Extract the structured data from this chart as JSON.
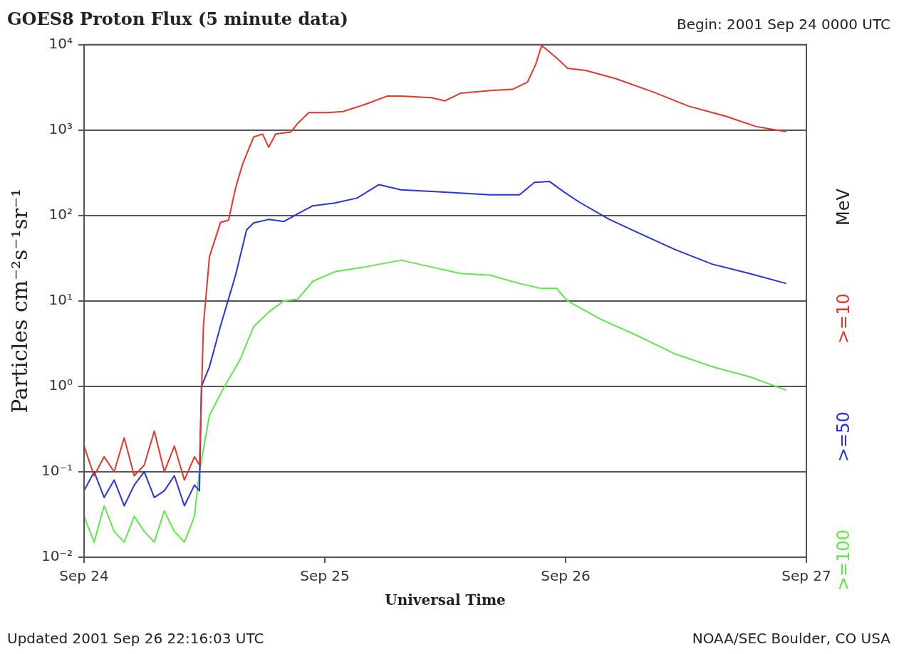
{
  "chart_data": {
    "type": "line",
    "title": "GOES8 Proton Flux (5 minute data)",
    "xlabel": "Universal Time",
    "ylabel": "Particles cm⁻²s⁻¹sr⁻¹",
    "legend_title": "MeV",
    "legend": "right",
    "grid": "y",
    "log": "y",
    "xlim": [
      "2001-09-24",
      "2001-09-27"
    ],
    "xticks": [
      {
        "value": "2001-09-24",
        "label": "Sep 24"
      },
      {
        "value": "2001-09-25",
        "label": "Sep 25"
      },
      {
        "value": "2001-09-26",
        "label": "Sep 26"
      },
      {
        "value": "2001-09-27",
        "label": "Sep 27"
      }
    ],
    "ylim": [
      0.01,
      10000
    ],
    "yticks": [
      {
        "value": 0.01,
        "label": "10⁻²"
      },
      {
        "value": 0.1,
        "label": "10⁻¹"
      },
      {
        "value": 1,
        "label": "10⁰"
      },
      {
        "value": 10,
        "label": "10¹"
      },
      {
        "value": 100,
        "label": "10²"
      },
      {
        "value": 1000,
        "label": "10³"
      },
      {
        "value": 10000,
        "label": "10⁴"
      }
    ],
    "annotations": [
      "Begin: 2001 Sep 24 0000 UTC",
      "Updated 2001 Sep 26 22:16:03 UTC",
      "NOAA/SEC Boulder, CO USA"
    ],
    "series": [
      {
        "name": ">=10",
        "color": "#e8352a",
        "x": [
          "2001-09-24T00:00",
          "2001-09-24T01:00",
          "2001-09-24T02:00",
          "2001-09-24T03:00",
          "2001-09-24T04:00",
          "2001-09-24T05:00",
          "2001-09-24T06:00",
          "2001-09-24T07:00",
          "2001-09-24T08:00",
          "2001-09-24T09:00",
          "2001-09-24T10:00",
          "2001-09-24T11:00",
          "2001-09-24T11:30",
          "2001-09-24T11:54",
          "2001-09-24T12:30",
          "2001-09-24T13:36",
          "2001-09-24T14:24",
          "2001-09-24T15:06",
          "2001-09-24T15:48",
          "2001-09-24T16:54",
          "2001-09-24T17:48",
          "2001-09-24T18:24",
          "2001-09-24T19:06",
          "2001-09-24T20:36",
          "2001-09-24T21:18",
          "2001-09-24T22:24",
          "2001-09-25T00:18",
          "2001-09-25T01:48",
          "2001-09-25T04:00",
          "2001-09-25T06:12",
          "2001-09-25T07:36",
          "2001-09-25T10:36",
          "2001-09-25T12:00",
          "2001-09-25T13:30",
          "2001-09-25T16:30",
          "2001-09-25T18:42",
          "2001-09-25T20:12",
          "2001-09-25T21:00",
          "2001-09-25T21:36",
          "2001-09-25T22:00",
          "2001-09-25T23:06",
          "2001-09-26T00:12",
          "2001-09-26T02:00",
          "2001-09-26T05:00",
          "2001-09-26T08:42",
          "2001-09-26T12:18",
          "2001-09-26T16:00",
          "2001-09-26T19:00",
          "2001-09-26T22:00"
        ],
        "values": [
          0.2,
          0.09,
          0.15,
          0.1,
          0.25,
          0.09,
          0.12,
          0.3,
          0.1,
          0.2,
          0.08,
          0.15,
          0.12,
          5.2,
          33,
          83,
          88,
          210,
          400,
          830,
          900,
          630,
          900,
          950,
          1200,
          1600,
          1600,
          1650,
          2000,
          2500,
          2500,
          2400,
          2200,
          2700,
          2900,
          3000,
          3650,
          5800,
          9700,
          9000,
          7000,
          5300,
          5000,
          4000,
          2800,
          1900,
          1450,
          1100,
          960
        ]
      },
      {
        "name": ">=50",
        "color": "#2633e0",
        "x": [
          "2001-09-24T00:00",
          "2001-09-24T01:00",
          "2001-09-24T02:00",
          "2001-09-24T03:00",
          "2001-09-24T04:00",
          "2001-09-24T05:00",
          "2001-09-24T06:00",
          "2001-09-24T07:00",
          "2001-09-24T08:00",
          "2001-09-24T09:00",
          "2001-09-24T10:00",
          "2001-09-24T11:00",
          "2001-09-24T11:30",
          "2001-09-24T11:42",
          "2001-09-24T12:30",
          "2001-09-24T13:36",
          "2001-09-24T14:24",
          "2001-09-24T15:06",
          "2001-09-24T16:12",
          "2001-09-24T16:54",
          "2001-09-24T18:24",
          "2001-09-24T19:54",
          "2001-09-24T21:18",
          "2001-09-24T22:48",
          "2001-09-25T01:00",
          "2001-09-25T03:12",
          "2001-09-25T05:24",
          "2001-09-25T07:36",
          "2001-09-25T11:18",
          "2001-09-25T16:30",
          "2001-09-25T19:24",
          "2001-09-25T20:54",
          "2001-09-25T22:24",
          "2001-09-25T23:48",
          "2001-09-26T01:18",
          "2001-09-26T04:18",
          "2001-09-26T07:12",
          "2001-09-26T10:54",
          "2001-09-26T14:36",
          "2001-09-26T18:18",
          "2001-09-26T22:00"
        ],
        "values": [
          0.06,
          0.1,
          0.05,
          0.08,
          0.04,
          0.07,
          0.1,
          0.05,
          0.06,
          0.09,
          0.04,
          0.07,
          0.06,
          1,
          1.7,
          5.1,
          10.6,
          20,
          68,
          82,
          90,
          85,
          105,
          130,
          140,
          160,
          230,
          200,
          190,
          175,
          175,
          245,
          250,
          190,
          145,
          91,
          63,
          40,
          27,
          21,
          16
        ]
      },
      {
        "name": ">=100",
        "color": "#5fe84a",
        "x": [
          "2001-09-24T00:00",
          "2001-09-24T01:00",
          "2001-09-24T02:00",
          "2001-09-24T03:00",
          "2001-09-24T04:00",
          "2001-09-24T05:00",
          "2001-09-24T06:00",
          "2001-09-24T07:00",
          "2001-09-24T08:00",
          "2001-09-24T09:00",
          "2001-09-24T10:00",
          "2001-09-24T11:00",
          "2001-09-24T11:30",
          "2001-09-24T12:30",
          "2001-09-24T14:00",
          "2001-09-24T15:30",
          "2001-09-24T16:54",
          "2001-09-24T18:24",
          "2001-09-24T19:54",
          "2001-09-24T21:18",
          "2001-09-24T22:48",
          "2001-09-25T01:00",
          "2001-09-25T04:00",
          "2001-09-25T07:36",
          "2001-09-25T10:36",
          "2001-09-25T13:30",
          "2001-09-25T16:30",
          "2001-09-25T19:24",
          "2001-09-25T21:36",
          "2001-09-25T23:06",
          "2001-09-26T00:12",
          "2001-09-26T03:30",
          "2001-09-26T07:12",
          "2001-09-26T10:54",
          "2001-09-26T14:36",
          "2001-09-26T18:18",
          "2001-09-26T22:00"
        ],
        "values": [
          0.03,
          0.015,
          0.04,
          0.02,
          0.015,
          0.03,
          0.02,
          0.015,
          0.035,
          0.02,
          0.015,
          0.03,
          0.1,
          0.46,
          1,
          2,
          5,
          7.4,
          10,
          10.5,
          17,
          22,
          25,
          30,
          25,
          21,
          20,
          16,
          14,
          14,
          10,
          6.1,
          3.9,
          2.4,
          1.7,
          1.3,
          0.9
        ]
      }
    ]
  }
}
